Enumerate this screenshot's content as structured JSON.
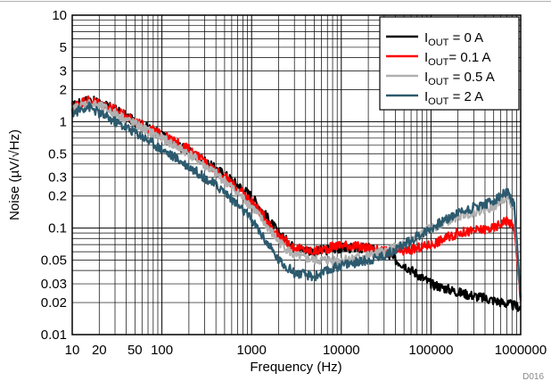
{
  "chart_data": {
    "type": "line",
    "title": "",
    "xlabel": "Frequency (Hz)",
    "ylabel": "Noise (µV/√Hz)",
    "x_scale": "log",
    "y_scale": "log",
    "xlim": [
      10,
      1000000
    ],
    "ylim": [
      0.01,
      10
    ],
    "grid": true,
    "legend_position": "top-right",
    "x_tick_values": [
      10,
      20,
      50,
      100,
      1000,
      10000,
      100000,
      1000000
    ],
    "x_tick_labels": [
      "10",
      "20",
      "50",
      "100",
      "1000",
      "10000",
      "100000",
      "1000000"
    ],
    "y_tick_values": [
      0.01,
      0.02,
      0.03,
      0.05,
      0.1,
      0.2,
      0.3,
      0.5,
      1,
      2,
      3,
      5,
      10
    ],
    "y_tick_labels": [
      "0.01",
      "0.02",
      "0.03",
      "0.05",
      "0.1",
      "0.2",
      "0.3",
      "0.5",
      "1",
      "2",
      "3",
      "5",
      "10"
    ],
    "series": [
      {
        "name": "I_OUT = 0 A",
        "label_main": "I",
        "label_sub": "OUT",
        "label_rest": " = 0 A",
        "color": "#000000",
        "x": [
          10,
          15,
          20,
          30,
          50,
          100,
          200,
          500,
          1000,
          2000,
          3000,
          5000,
          10000,
          20000,
          30000,
          50000,
          100000,
          200000,
          500000,
          1000000
        ],
        "y": [
          1.4,
          1.6,
          1.5,
          1.3,
          1.0,
          0.75,
          0.52,
          0.32,
          0.2,
          0.09,
          0.065,
          0.06,
          0.065,
          0.065,
          0.058,
          0.045,
          0.03,
          0.025,
          0.021,
          0.018
        ]
      },
      {
        "name": "I_OUT = 0.1 A",
        "label_main": "I",
        "label_sub": "OUT",
        "label_rest": "= 0.1 A",
        "color": "#ff0000",
        "x": [
          10,
          15,
          20,
          30,
          50,
          100,
          200,
          500,
          1000,
          2000,
          3000,
          5000,
          10000,
          20000,
          30000,
          50000,
          100000,
          200000,
          500000,
          700000,
          850000,
          1000000
        ],
        "y": [
          1.4,
          1.6,
          1.5,
          1.3,
          1.0,
          0.75,
          0.55,
          0.3,
          0.18,
          0.085,
          0.065,
          0.06,
          0.07,
          0.065,
          0.06,
          0.06,
          0.07,
          0.09,
          0.1,
          0.12,
          0.1,
          0.02
        ]
      },
      {
        "name": "I_OUT = 0.5 A",
        "label_main": "I",
        "label_sub": "OUT",
        "label_rest": " = 0.5 A",
        "color": "#b0b0b0",
        "x": [
          10,
          15,
          20,
          30,
          50,
          100,
          200,
          500,
          1000,
          2000,
          3000,
          5000,
          10000,
          20000,
          30000,
          50000,
          100000,
          200000,
          500000,
          700000,
          850000,
          1000000
        ],
        "y": [
          1.3,
          1.5,
          1.4,
          1.2,
          0.95,
          0.7,
          0.5,
          0.28,
          0.16,
          0.075,
          0.055,
          0.05,
          0.05,
          0.055,
          0.06,
          0.07,
          0.1,
          0.13,
          0.16,
          0.2,
          0.15,
          0.02
        ]
      },
      {
        "name": "I_OUT = 2 A",
        "label_main": "I",
        "label_sub": "OUT",
        "label_rest": " = 2 A",
        "color": "#2c5a6e",
        "x": [
          10,
          15,
          20,
          30,
          50,
          100,
          200,
          500,
          1000,
          2000,
          3000,
          5000,
          10000,
          20000,
          30000,
          50000,
          100000,
          200000,
          500000,
          700000,
          850000,
          1000000
        ],
        "y": [
          1.2,
          1.4,
          1.2,
          1.0,
          0.8,
          0.55,
          0.38,
          0.22,
          0.12,
          0.05,
          0.038,
          0.035,
          0.045,
          0.05,
          0.055,
          0.07,
          0.1,
          0.14,
          0.18,
          0.22,
          0.16,
          0.02
        ]
      }
    ]
  },
  "figure_id": "D016"
}
